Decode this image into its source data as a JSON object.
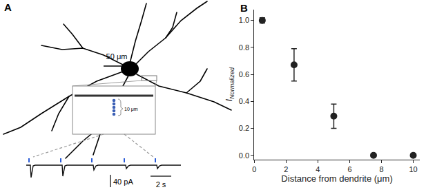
{
  "panel_labels": [
    "A",
    "B"
  ],
  "panel_a": {
    "scale_bars": {
      "morphology": "50 μm",
      "spacing": "10 μm",
      "current": "40 pA",
      "time": "2 s"
    }
  },
  "chart_data": {
    "type": "scatter",
    "x": [
      0.5,
      2.5,
      5,
      7.5,
      10
    ],
    "values": [
      1.0,
      0.67,
      0.29,
      0.0,
      0.0
    ],
    "error": [
      0.02,
      0.12,
      0.09,
      0.0,
      0.0
    ],
    "xlabel": "Distance from dendrite (μm)",
    "ylabel": "I",
    "ylabel_subscript": "Normalized",
    "xlim": [
      0,
      10.4
    ],
    "ylim": [
      -0.03,
      1.08
    ],
    "xticks": [
      0,
      2,
      4,
      6,
      8,
      10
    ],
    "yticks": [
      {
        "value": 0,
        "label": "0.0"
      },
      {
        "value": 0.2,
        "label": "0.2"
      },
      {
        "value": 0.4,
        "label": "0.4"
      },
      {
        "value": 0.6,
        "label": "0.6"
      },
      {
        "value": 0.8,
        "label": "0.8"
      },
      {
        "value": 1.0,
        "label": "1.0"
      }
    ],
    "color": "#222222",
    "marker": "circle",
    "grid": false
  }
}
